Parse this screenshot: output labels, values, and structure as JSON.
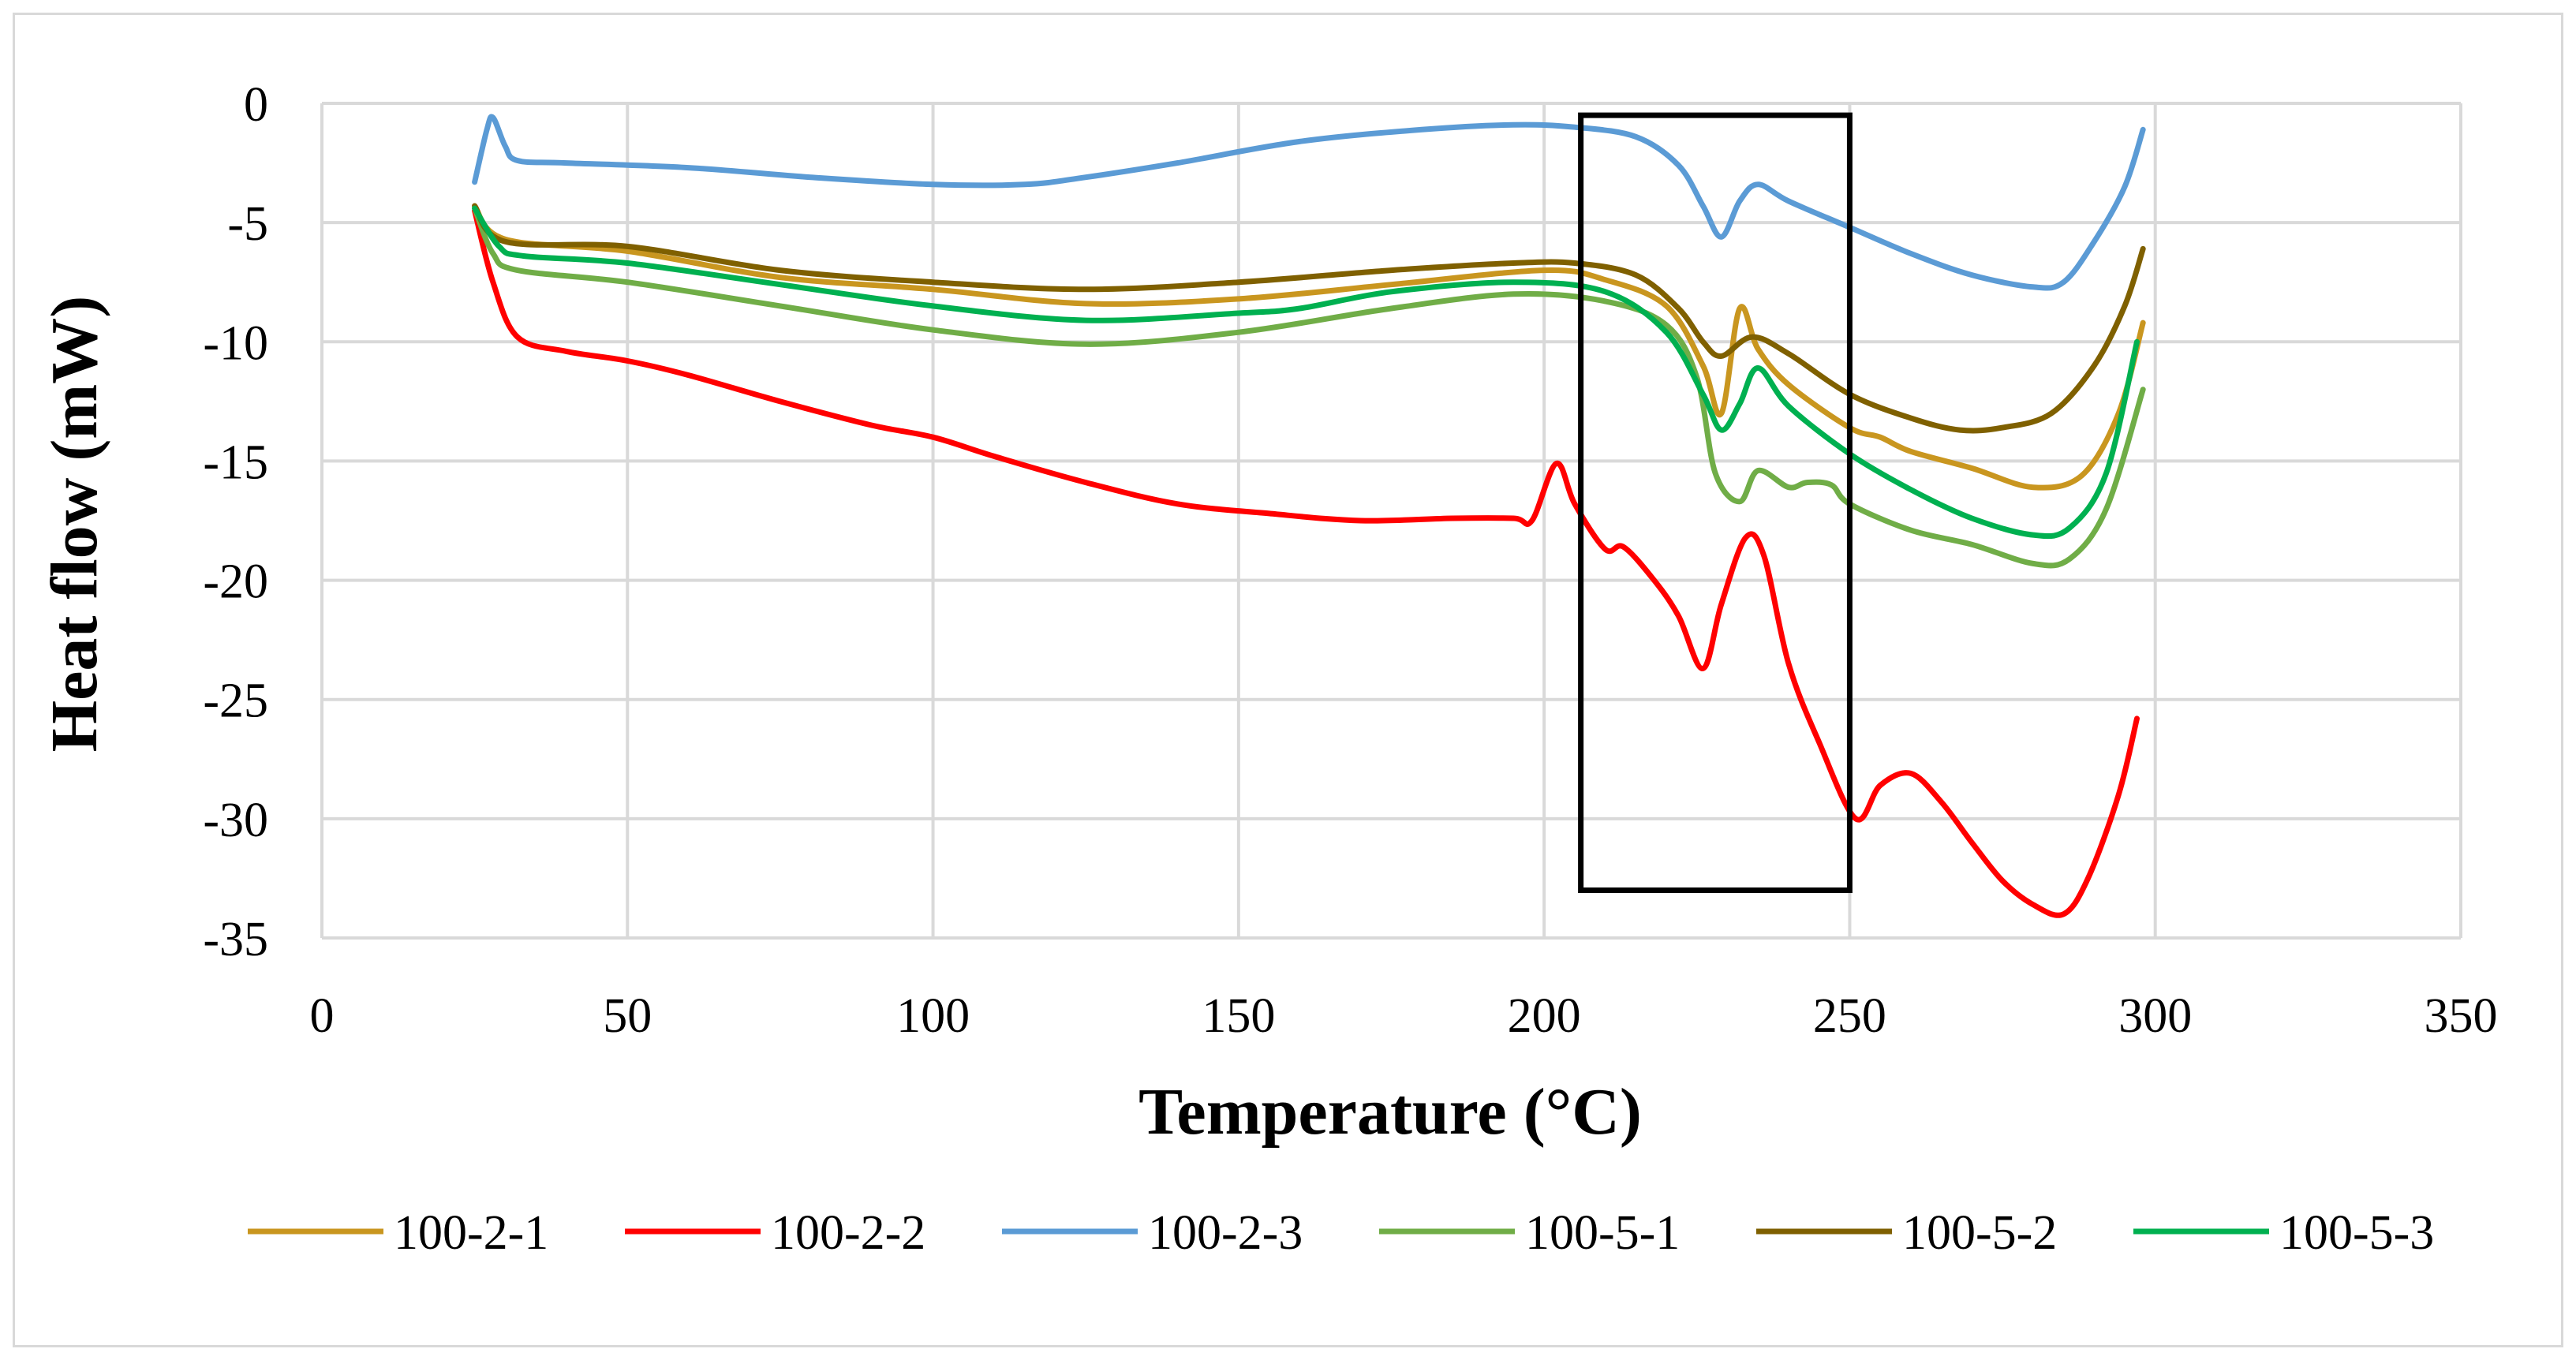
{
  "chart_data": {
    "type": "line",
    "title": "",
    "xlabel": "Temperature (°C)",
    "ylabel": "Heat flow (mW)",
    "xlim": [
      0,
      350
    ],
    "ylim": [
      -35,
      0
    ],
    "xticks": [
      0,
      50,
      100,
      150,
      200,
      250,
      300,
      350
    ],
    "yticks": [
      0,
      -5,
      -10,
      -15,
      -20,
      -25,
      -30,
      -35
    ],
    "grid": true,
    "legend_position": "bottom",
    "annotation_box": {
      "x0": 206,
      "x1": 250,
      "y0": -0.5,
      "y1": -33
    },
    "series": [
      {
        "name": "100-2-1",
        "color": "#c9961f",
        "points": [
          [
            25,
            -4.3
          ],
          [
            30,
            -5.7
          ],
          [
            50,
            -6.2
          ],
          [
            75,
            -7.3
          ],
          [
            100,
            -7.8
          ],
          [
            125,
            -8.4
          ],
          [
            150,
            -8.2
          ],
          [
            175,
            -7.6
          ],
          [
            200,
            -7.0
          ],
          [
            210,
            -7.4
          ],
          [
            220,
            -8.5
          ],
          [
            226,
            -11
          ],
          [
            229,
            -13
          ],
          [
            232,
            -8.6
          ],
          [
            235,
            -10.3
          ],
          [
            240,
            -11.8
          ],
          [
            250,
            -13.6
          ],
          [
            255,
            -14.0
          ],
          [
            260,
            -14.6
          ],
          [
            270,
            -15.3
          ],
          [
            280,
            -16.1
          ],
          [
            288,
            -15.6
          ],
          [
            294,
            -13
          ],
          [
            298,
            -9.2
          ]
        ]
      },
      {
        "name": "100-2-2",
        "color": "#ff0000",
        "points": [
          [
            25,
            -4.5
          ],
          [
            28,
            -7.5
          ],
          [
            32,
            -9.8
          ],
          [
            40,
            -10.4
          ],
          [
            50,
            -10.8
          ],
          [
            60,
            -11.4
          ],
          [
            75,
            -12.5
          ],
          [
            90,
            -13.5
          ],
          [
            100,
            -14.0
          ],
          [
            110,
            -14.8
          ],
          [
            125,
            -15.9
          ],
          [
            140,
            -16.8
          ],
          [
            155,
            -17.2
          ],
          [
            170,
            -17.5
          ],
          [
            185,
            -17.4
          ],
          [
            195,
            -17.4
          ],
          [
            198,
            -17.5
          ],
          [
            202,
            -15.1
          ],
          [
            205,
            -16.8
          ],
          [
            210,
            -18.7
          ],
          [
            213,
            -18.6
          ],
          [
            218,
            -20.0
          ],
          [
            222,
            -21.5
          ],
          [
            226,
            -23.7
          ],
          [
            229,
            -21.0
          ],
          [
            233,
            -18.2
          ],
          [
            236,
            -19.0
          ],
          [
            240,
            -23.5
          ],
          [
            245,
            -26.8
          ],
          [
            251,
            -30.0
          ],
          [
            255,
            -28.6
          ],
          [
            260,
            -28.1
          ],
          [
            265,
            -29.3
          ],
          [
            270,
            -31.0
          ],
          [
            275,
            -32.6
          ],
          [
            280,
            -33.6
          ],
          [
            285,
            -34.0
          ],
          [
            289,
            -32.5
          ],
          [
            294,
            -29.0
          ],
          [
            297,
            -25.8
          ]
        ]
      },
      {
        "name": "100-2-3",
        "color": "#5b9bd5",
        "points": [
          [
            25,
            -3.3
          ],
          [
            27,
            -1.1
          ],
          [
            28,
            -0.6
          ],
          [
            30,
            -1.8
          ],
          [
            32,
            -2.4
          ],
          [
            40,
            -2.5
          ],
          [
            60,
            -2.7
          ],
          [
            80,
            -3.1
          ],
          [
            100,
            -3.4
          ],
          [
            115,
            -3.4
          ],
          [
            125,
            -3.1
          ],
          [
            140,
            -2.5
          ],
          [
            160,
            -1.6
          ],
          [
            180,
            -1.1
          ],
          [
            195,
            -0.9
          ],
          [
            205,
            -1.0
          ],
          [
            215,
            -1.4
          ],
          [
            222,
            -2.6
          ],
          [
            226,
            -4.3
          ],
          [
            229,
            -5.6
          ],
          [
            232,
            -4.1
          ],
          [
            235,
            -3.4
          ],
          [
            240,
            -4.1
          ],
          [
            250,
            -5.2
          ],
          [
            260,
            -6.3
          ],
          [
            270,
            -7.2
          ],
          [
            280,
            -7.7
          ],
          [
            285,
            -7.5
          ],
          [
            290,
            -5.8
          ],
          [
            295,
            -3.5
          ],
          [
            298,
            -1.1
          ]
        ]
      },
      {
        "name": "100-5-1",
        "color": "#70ad47",
        "points": [
          [
            25,
            -4.4
          ],
          [
            28,
            -6.3
          ],
          [
            32,
            -7.0
          ],
          [
            50,
            -7.5
          ],
          [
            75,
            -8.5
          ],
          [
            100,
            -9.5
          ],
          [
            125,
            -10.1
          ],
          [
            150,
            -9.6
          ],
          [
            175,
            -8.6
          ],
          [
            195,
            -8.0
          ],
          [
            210,
            -8.3
          ],
          [
            220,
            -9.3
          ],
          [
            225,
            -11.5
          ],
          [
            228,
            -15.5
          ],
          [
            232,
            -16.7
          ],
          [
            235,
            -15.4
          ],
          [
            240,
            -16.1
          ],
          [
            243,
            -15.9
          ],
          [
            247,
            -16.0
          ],
          [
            250,
            -16.8
          ],
          [
            260,
            -17.9
          ],
          [
            270,
            -18.5
          ],
          [
            280,
            -19.3
          ],
          [
            286,
            -19.1
          ],
          [
            292,
            -17
          ],
          [
            298,
            -12
          ]
        ]
      },
      {
        "name": "100-5-2",
        "color": "#7f6000",
        "points": [
          [
            25,
            -4.3
          ],
          [
            30,
            -5.8
          ],
          [
            50,
            -6.0
          ],
          [
            75,
            -7.0
          ],
          [
            100,
            -7.5
          ],
          [
            125,
            -7.8
          ],
          [
            150,
            -7.5
          ],
          [
            175,
            -7.0
          ],
          [
            195,
            -6.7
          ],
          [
            205,
            -6.7
          ],
          [
            215,
            -7.2
          ],
          [
            222,
            -8.6
          ],
          [
            226,
            -10.0
          ],
          [
            229,
            -10.6
          ],
          [
            234,
            -9.8
          ],
          [
            240,
            -10.5
          ],
          [
            250,
            -12.2
          ],
          [
            260,
            -13.2
          ],
          [
            268,
            -13.7
          ],
          [
            275,
            -13.6
          ],
          [
            283,
            -13.0
          ],
          [
            290,
            -11.0
          ],
          [
            295,
            -8.5
          ],
          [
            298,
            -6.1
          ]
        ]
      },
      {
        "name": "100-5-3",
        "color": "#00b050",
        "points": [
          [
            25,
            -4.4
          ],
          [
            29,
            -6.0
          ],
          [
            33,
            -6.4
          ],
          [
            50,
            -6.7
          ],
          [
            75,
            -7.6
          ],
          [
            100,
            -8.5
          ],
          [
            125,
            -9.1
          ],
          [
            150,
            -8.8
          ],
          [
            160,
            -8.6
          ],
          [
            175,
            -7.9
          ],
          [
            195,
            -7.5
          ],
          [
            210,
            -7.9
          ],
          [
            220,
            -9.6
          ],
          [
            226,
            -12.2
          ],
          [
            229,
            -13.7
          ],
          [
            232,
            -12.6
          ],
          [
            235,
            -11.1
          ],
          [
            240,
            -12.7
          ],
          [
            250,
            -14.7
          ],
          [
            260,
            -16.2
          ],
          [
            270,
            -17.4
          ],
          [
            280,
            -18.1
          ],
          [
            286,
            -17.8
          ],
          [
            292,
            -15.5
          ],
          [
            297,
            -10.0
          ]
        ]
      }
    ]
  }
}
